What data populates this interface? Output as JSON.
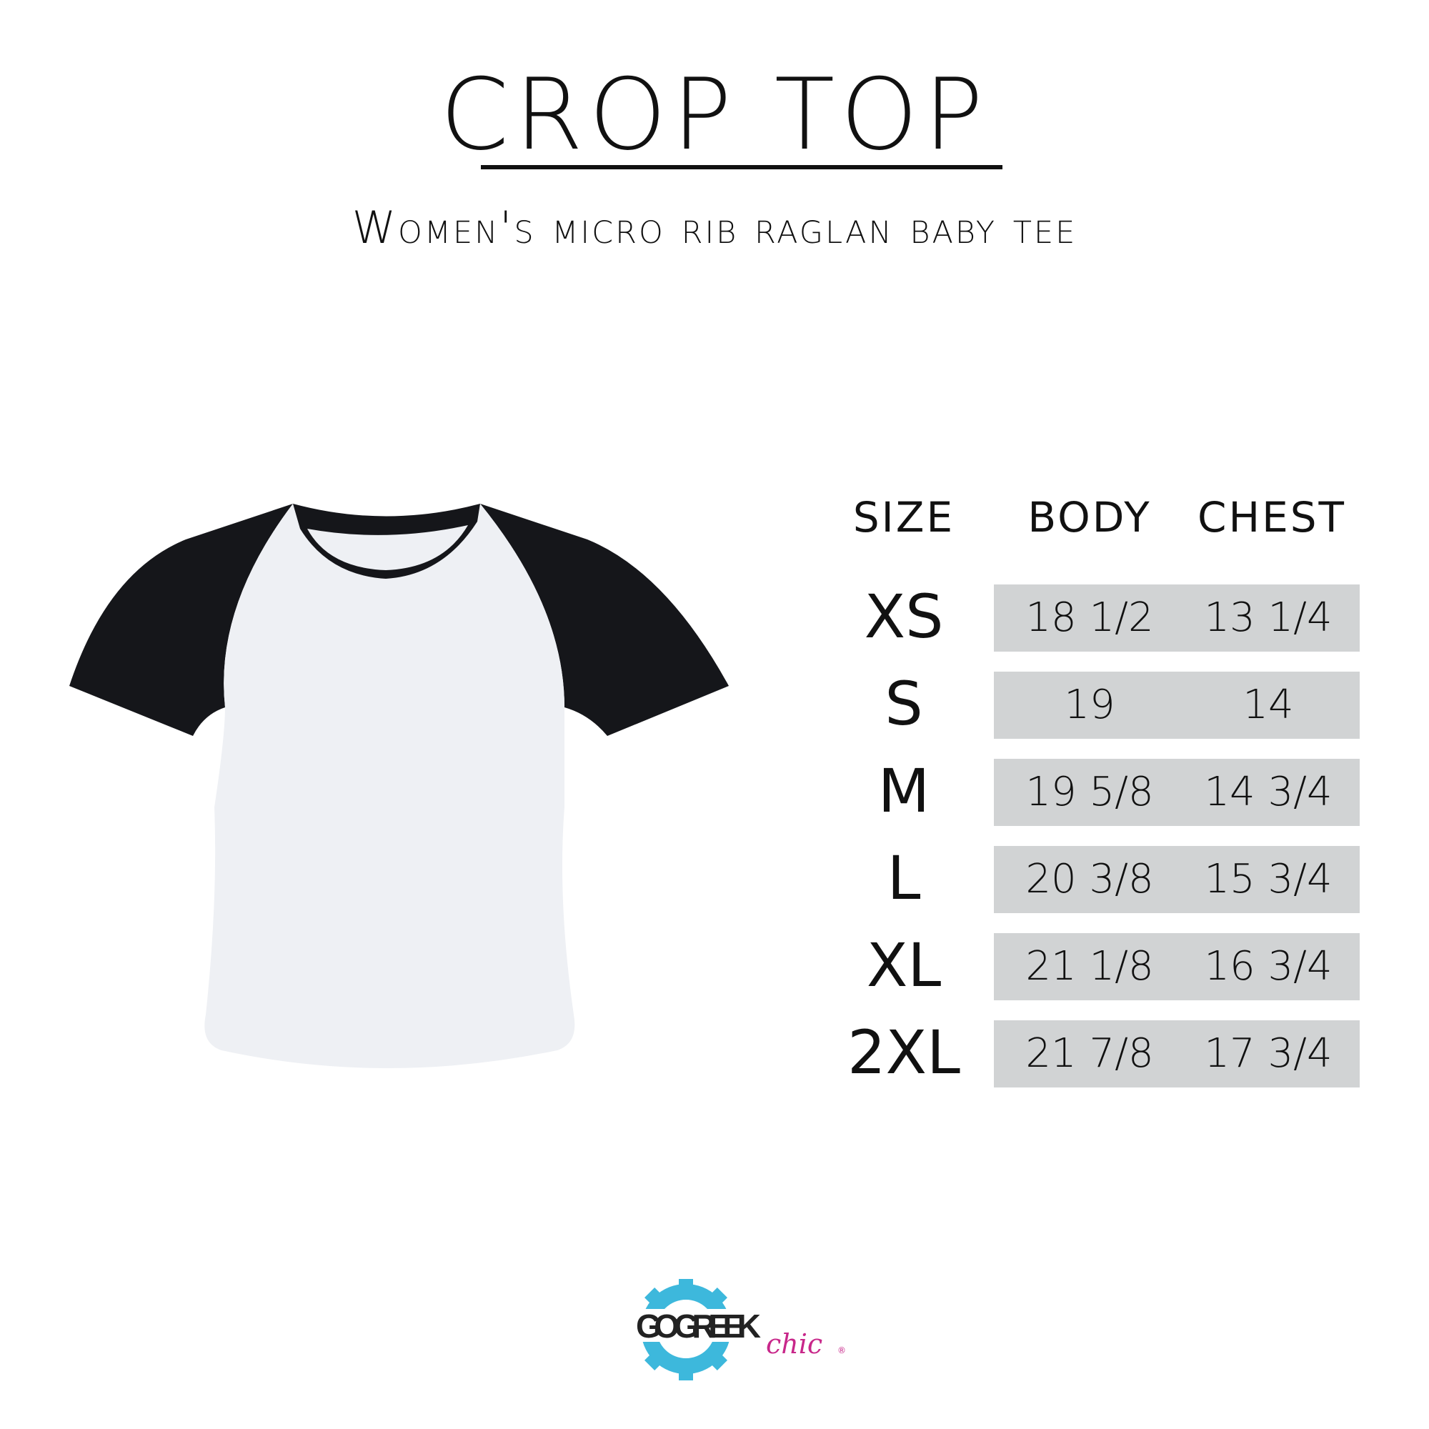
{
  "title": "CROP TOP",
  "subtitle": "Women's micro rib raglan baby tee",
  "table": {
    "headers": [
      "SIZE",
      "BODY",
      "CHEST"
    ],
    "rows": [
      {
        "size": "XS",
        "body": "18 1/2",
        "chest": "13 1/4"
      },
      {
        "size": "S",
        "body": "19",
        "chest": "14"
      },
      {
        "size": "M",
        "body": "19 5/8",
        "chest": "14 3/4"
      },
      {
        "size": "L",
        "body": "20 3/8",
        "chest": "15 3/4"
      },
      {
        "size": "XL",
        "body": "21 1/8",
        "chest": "16 3/4"
      },
      {
        "size": "2XL",
        "body": "21 7/8",
        "chest": "17 3/4"
      }
    ]
  },
  "logo": {
    "text1": "GO GREEK",
    "text2": "chic",
    "mark": "®",
    "gear_color": "#3db8dc",
    "script_color": "#c8278a"
  },
  "colors": {
    "row_bg": "#d1d3d4",
    "sleeve": "#15161a",
    "body": "#eef0f4"
  }
}
